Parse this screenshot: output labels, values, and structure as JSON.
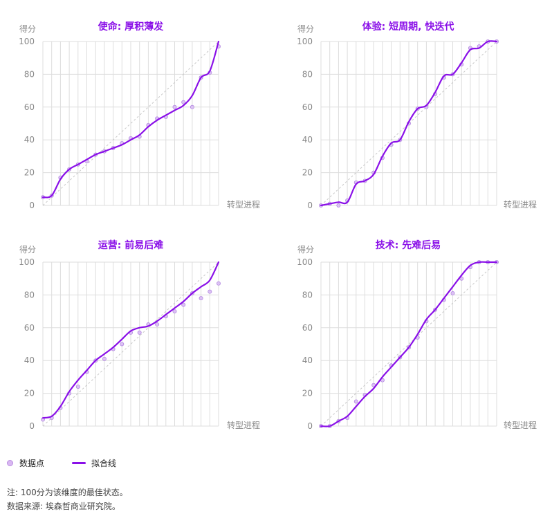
{
  "legend": {
    "points_label": "数据点",
    "fit_label": "拟合线"
  },
  "notes": {
    "note": "注: 100分为该维度的最佳状态。",
    "source": "数据来源: 埃森哲商业研究院。"
  },
  "colors": {
    "fit": "#8a10e8",
    "title": "#8a10e8",
    "point_fill": "#dcc2f4",
    "point_stroke": "#b48ae0",
    "grid": "#dddddd",
    "diag": "#c8c8c8",
    "axis_text": "#888888"
  },
  "chart_data": [
    {
      "type": "scatter",
      "title": "使命: 厚积薄发",
      "ylabel": "得分",
      "xlabel": "转型进程",
      "ylim": [
        0,
        100
      ],
      "yticks": [
        0,
        20,
        40,
        60,
        80,
        100
      ],
      "x": [
        0,
        1,
        2,
        3,
        4,
        5,
        6,
        7,
        8,
        9,
        10,
        11,
        12,
        13,
        14,
        15,
        16,
        17,
        18,
        19,
        20
      ],
      "points": [
        5,
        6,
        17,
        22,
        25,
        27,
        31,
        33,
        35,
        38,
        41,
        42,
        49,
        53,
        54,
        60,
        63,
        60,
        78,
        81,
        97
      ],
      "fit": [
        5,
        6,
        16,
        22,
        25,
        28,
        31,
        33,
        35,
        37,
        40,
        43,
        48,
        52,
        55,
        58,
        61,
        67,
        78,
        82,
        100
      ],
      "grid": true
    },
    {
      "type": "scatter",
      "title": "体验: 短周期, 快迭代",
      "ylabel": "得分",
      "xlabel": "转型进程",
      "ylim": [
        0,
        100
      ],
      "yticks": [
        0,
        20,
        40,
        60,
        80,
        100
      ],
      "x": [
        0,
        1,
        2,
        3,
        4,
        5,
        6,
        7,
        8,
        9,
        10,
        11,
        12,
        13,
        14,
        15,
        16,
        17,
        18,
        19,
        20
      ],
      "points": [
        0,
        1,
        0,
        3,
        14,
        15,
        20,
        29,
        37,
        40,
        50,
        59,
        60,
        68,
        78,
        80,
        86,
        96,
        97,
        100,
        100
      ],
      "fit": [
        0,
        1,
        2,
        2,
        13,
        15,
        19,
        30,
        38,
        40,
        51,
        59,
        61,
        69,
        79,
        80,
        87,
        95,
        96,
        100,
        100
      ],
      "grid": true
    },
    {
      "type": "scatter",
      "title": "运营: 前易后难",
      "ylabel": "得分",
      "xlabel": "转型进程",
      "ylim": [
        0,
        100
      ],
      "yticks": [
        0,
        20,
        40,
        60,
        80,
        100
      ],
      "x": [
        0,
        1,
        2,
        3,
        4,
        5,
        6,
        7,
        8,
        9,
        10,
        11,
        12,
        13,
        14,
        15,
        16,
        17,
        18,
        19,
        20
      ],
      "points": [
        4,
        5,
        11,
        20,
        24,
        33,
        40,
        41,
        47,
        50,
        57,
        57,
        62,
        62,
        67,
        70,
        74,
        81,
        78,
        82,
        87
      ],
      "fit": [
        5,
        6,
        12,
        21,
        28,
        34,
        40,
        44,
        48,
        53,
        58,
        60,
        61,
        64,
        68,
        72,
        76,
        81,
        85,
        89,
        100
      ],
      "grid": true
    },
    {
      "type": "scatter",
      "title": "技术: 先难后易",
      "ylabel": "得分",
      "xlabel": "转型进程",
      "ylim": [
        0,
        100
      ],
      "yticks": [
        0,
        20,
        40,
        60,
        80,
        100
      ],
      "x": [
        0,
        1,
        2,
        3,
        4,
        5,
        6,
        7,
        8,
        9,
        10,
        11,
        12,
        13,
        14,
        15,
        16,
        17,
        18,
        19,
        20
      ],
      "points": [
        0,
        0,
        3,
        5,
        15,
        19,
        25,
        28,
        37,
        42,
        48,
        54,
        64,
        71,
        77,
        81,
        90,
        97,
        100,
        100,
        100
      ],
      "fit": [
        0,
        0,
        3,
        6,
        12,
        18,
        23,
        30,
        36,
        42,
        48,
        56,
        65,
        71,
        78,
        85,
        92,
        98,
        100,
        100,
        100
      ],
      "grid": true
    }
  ]
}
